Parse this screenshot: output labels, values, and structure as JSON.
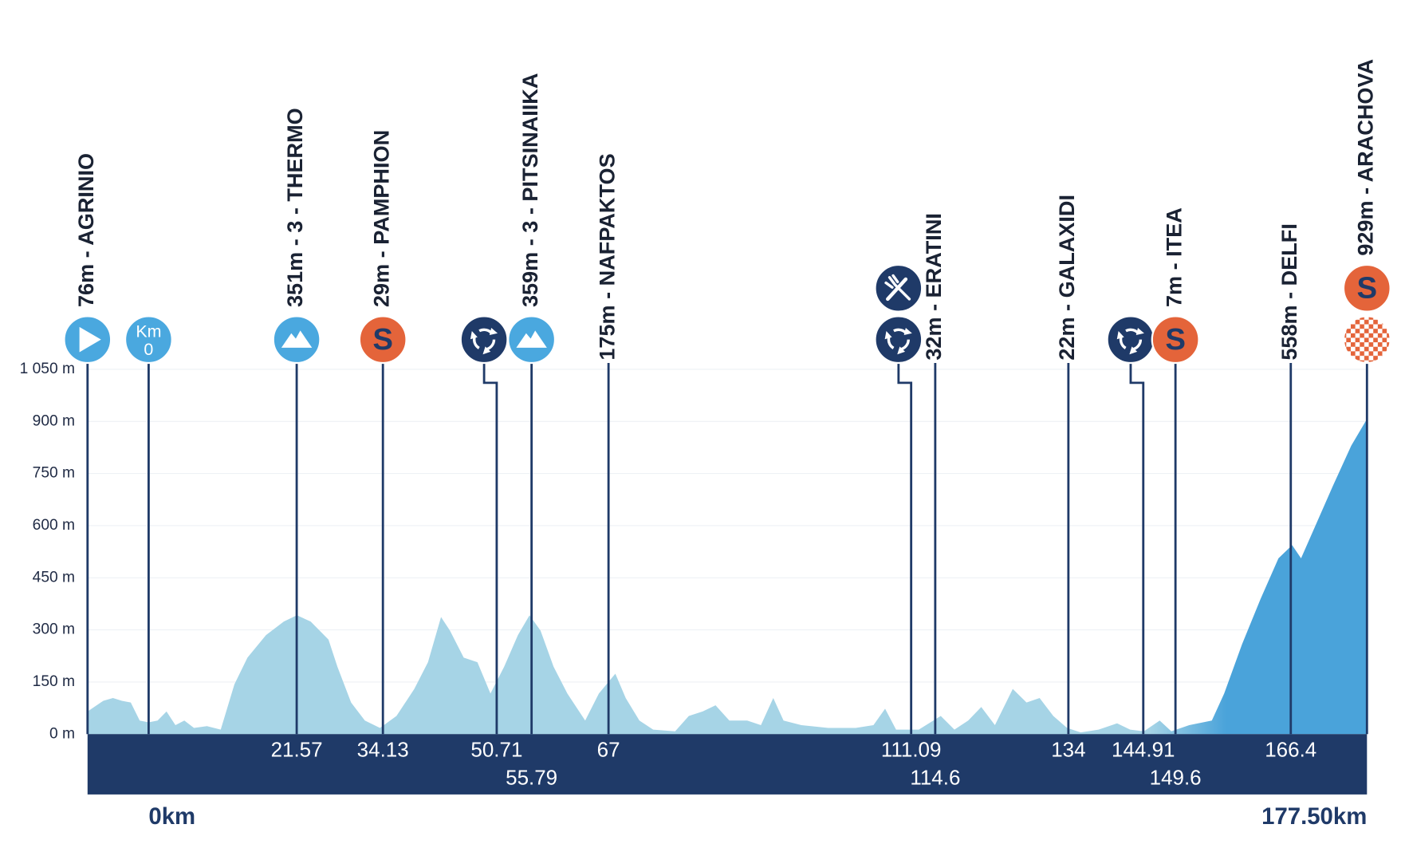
{
  "chart_data": {
    "type": "area",
    "xlim": [
      -8.9,
      177.5
    ],
    "ylim": [
      0,
      1050
    ],
    "xticks": [
      {
        "value": 0,
        "label": "0km"
      },
      {
        "value": 177.5,
        "label": "177.50km"
      }
    ],
    "yticks": [
      {
        "value": 0,
        "label": "0 m"
      },
      {
        "value": 150,
        "label": "150 m"
      },
      {
        "value": 300,
        "label": "300 m"
      },
      {
        "value": 450,
        "label": "450 m"
      },
      {
        "value": 600,
        "label": "600 m"
      },
      {
        "value": 750,
        "label": "750 m"
      },
      {
        "value": 900,
        "label": "900 m"
      },
      {
        "value": 1050,
        "label": "1 050 m"
      }
    ],
    "grid": true,
    "colors": [
      "#a6d4e6",
      "#4aa3da"
    ],
    "x": [
      -8.9,
      -6.6,
      -5.2,
      -3.9,
      -2.6,
      -1.3,
      0,
      1.3,
      2.6,
      3.9,
      5.2,
      6.6,
      8.5,
      10.5,
      12.5,
      14.4,
      17.1,
      19.7,
      21.6,
      23.6,
      26.2,
      27.5,
      29.5,
      31.5,
      33.7,
      36.1,
      38.7,
      40.7,
      42.6,
      43.9,
      45.9,
      47.9,
      49.8,
      51.8,
      53.8,
      55.5,
      57.1,
      59.0,
      61.0,
      63.6,
      65.6,
      68.0,
      69.5,
      71.5,
      73.5,
      76.7,
      78.7,
      80.7,
      82.6,
      84.6,
      87.2,
      89.2,
      91.0,
      92.5,
      95.1,
      99.0,
      103.0,
      105.6,
      107.3,
      108.9,
      112.2,
      115.4,
      117.4,
      119.4,
      121.3,
      123.3,
      125.9,
      127.9,
      129.8,
      131.8,
      133.8,
      135.8,
      138.4,
      141.1,
      143.0,
      145.0,
      147.3,
      149.0,
      151.6,
      154.9,
      156.7,
      159.3,
      162.0,
      164.6,
      166.6,
      167.9,
      169.9,
      172.5,
      175.2,
      177.5
    ],
    "values": [
      65,
      96,
      104,
      96,
      91,
      39,
      34,
      39,
      65,
      26,
      39,
      18,
      23,
      13,
      143,
      220,
      285,
      324,
      342,
      324,
      272,
      194,
      91,
      39,
      18,
      52,
      130,
      207,
      337,
      298,
      220,
      207,
      117,
      194,
      285,
      342,
      298,
      194,
      117,
      39,
      117,
      174,
      104,
      39,
      13,
      8,
      52,
      65,
      83,
      39,
      39,
      26,
      104,
      39,
      26,
      18,
      18,
      26,
      73,
      13,
      13,
      52,
      13,
      39,
      78,
      26,
      130,
      91,
      104,
      52,
      18,
      5,
      13,
      31,
      13,
      8,
      39,
      8,
      26,
      39,
      117,
      259,
      389,
      506,
      544,
      506,
      596,
      713,
      830,
      907
    ]
  },
  "waypoints": [
    {
      "label": "76m - AGRINIO",
      "km": -8.9,
      "km_printed": false,
      "icons": [
        "start"
      ]
    },
    {
      "km": 0,
      "km_printed": false,
      "icons": [
        "km_zero"
      ]
    },
    {
      "label": "351m - 3 - THERMO",
      "km": 21.57,
      "km_printed": true,
      "icons": [
        "mountain"
      ]
    },
    {
      "label": "29m - PAMPHION",
      "km": 34.13,
      "km_printed": true,
      "icons": [
        "sprint"
      ]
    },
    {
      "km": 50.71,
      "km_printed": true,
      "icons": [
        "waste"
      ]
    },
    {
      "label": "359m - 3 - PITSINAIIKA",
      "km": 55.79,
      "km_printed": true,
      "icons": [
        "mountain"
      ]
    },
    {
      "label": "175m - NAFPAKTOS",
      "km": 67,
      "km_printed": true,
      "icons": []
    },
    {
      "km": 111.09,
      "km_printed": true,
      "icons": [
        "feed",
        "waste"
      ]
    },
    {
      "label": "32m - ERATINI",
      "km": 114.6,
      "km_printed": true,
      "icons": []
    },
    {
      "label": "22m - GALAXIDI",
      "km": 134,
      "km_printed": true,
      "icons": []
    },
    {
      "km": 144.91,
      "km_printed": true,
      "icons": [
        "waste"
      ]
    },
    {
      "label": "7m - ITEA",
      "km": 149.6,
      "km_printed": true,
      "icons": [
        "sprint"
      ]
    },
    {
      "label": "558m - DELFI",
      "km": 166.4,
      "km_printed": true,
      "icons": []
    },
    {
      "label": "929m - ARACHOVA",
      "km": 177.5,
      "km_printed": false,
      "icons": [
        "sprint",
        "finish"
      ]
    }
  ],
  "icon_text": {
    "sprint": "S",
    "km_zero": [
      "Km",
      "0"
    ]
  }
}
